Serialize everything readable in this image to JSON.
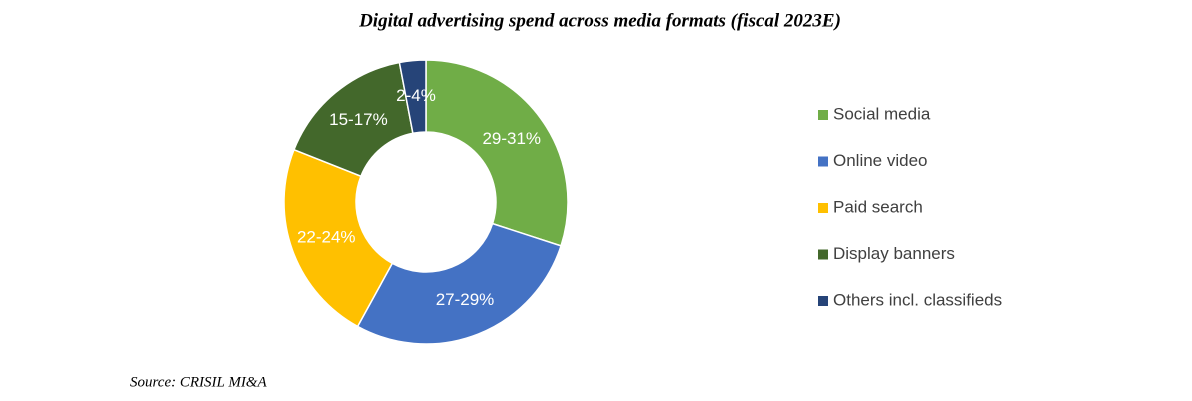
{
  "chart_data": {
    "type": "donut",
    "title": "Digital advertising spend across media formats (fiscal 2023E)",
    "categories": [
      "Social media",
      "Online video",
      "Paid search",
      "Display banners",
      "Others incl. classifieds"
    ],
    "values": [
      30,
      28,
      23,
      16,
      3
    ],
    "value_labels": [
      "29-31%",
      "27-29%",
      "22-24%",
      "15-17%",
      "2-4%"
    ],
    "colors": [
      "#70ad47",
      "#4472c4",
      "#ffc000",
      "#43682b",
      "#264478"
    ],
    "legend": "right",
    "source": "Source: CRISIL MI&A"
  }
}
